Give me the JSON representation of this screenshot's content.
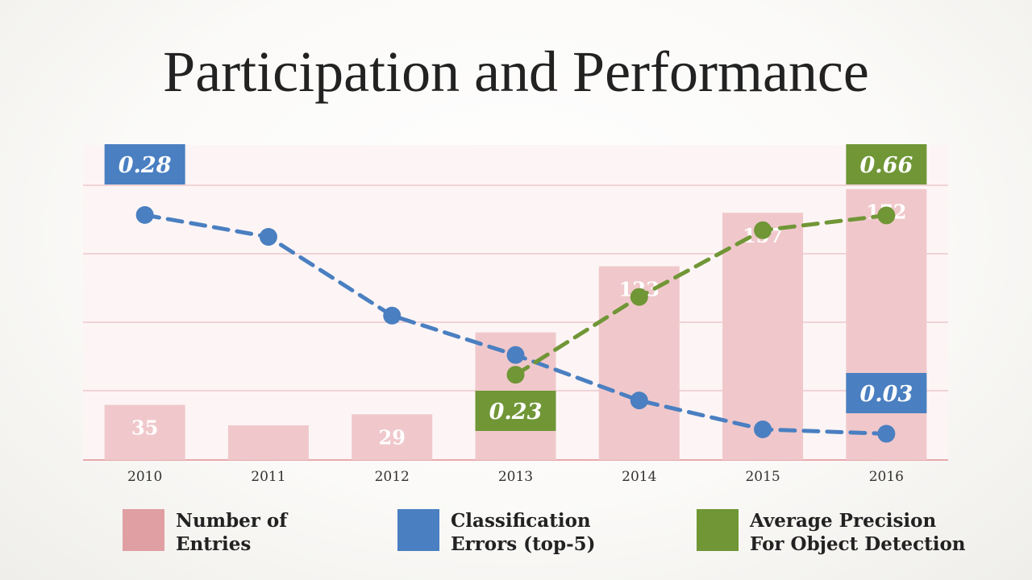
{
  "colors": {
    "entries_bar": "#f0c8cb",
    "errors": "#4a7fc1",
    "precision": "#709636",
    "gridline": "#ecc8cb",
    "plot_bg": "#fdf5f5"
  },
  "chart_data": {
    "type": "bar",
    "title": "Participation and Performance",
    "categories": [
      "2010",
      "2011",
      "2012",
      "2013",
      "2014",
      "2015",
      "2016"
    ],
    "series": [
      {
        "name": "Number of Entries",
        "kind": "bar",
        "values": [
          35,
          22,
          29,
          81,
          123,
          157,
          172
        ],
        "labels": [
          "35",
          "",
          "29",
          "",
          "123",
          "157",
          "172"
        ]
      },
      {
        "name": "Classification Errors (top-5)",
        "kind": "line",
        "dashed": true,
        "values": [
          0.28,
          0.255,
          0.165,
          0.12,
          0.068,
          0.035,
          0.03
        ]
      },
      {
        "name": "Average Precision For Object Detection",
        "kind": "line",
        "dashed": true,
        "values": [
          null,
          null,
          null,
          0.23,
          0.44,
          0.62,
          0.66
        ]
      }
    ],
    "callouts": [
      {
        "series": 1,
        "index": 0,
        "text": "0.28"
      },
      {
        "series": 1,
        "index": 6,
        "text": "0.03"
      },
      {
        "series": 2,
        "index": 3,
        "text": "0.23"
      },
      {
        "series": 2,
        "index": 6,
        "text": "0.66"
      }
    ],
    "entries_ylim": [
      0,
      200
    ],
    "errors_ylim": [
      0,
      0.36
    ],
    "precision_ylim": [
      0,
      0.85
    ],
    "grid": true
  },
  "legend": [
    {
      "label": "Number of\nEntries",
      "color_key": "entries_bar"
    },
    {
      "label": "Classification\nErrors (top-5)",
      "color_key": "errors"
    },
    {
      "label": "Average Precision\nFor Object Detection",
      "color_key": "precision"
    }
  ]
}
